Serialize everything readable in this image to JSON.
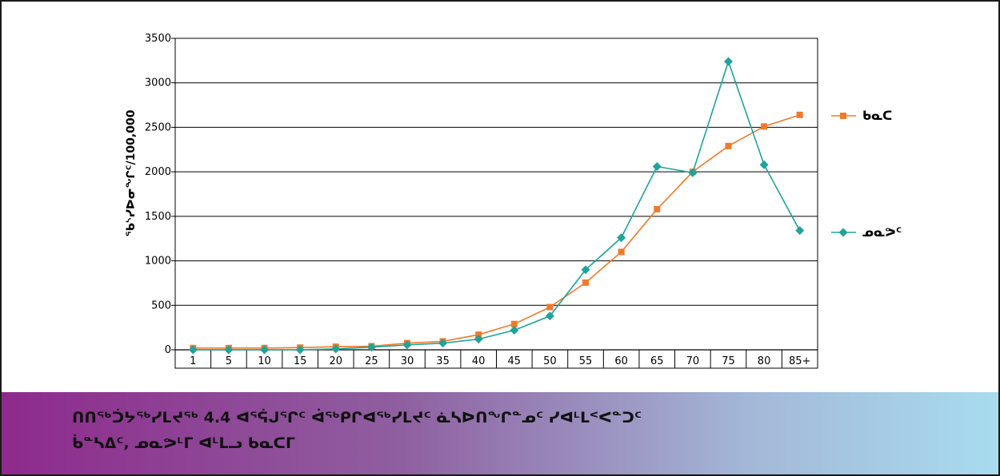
{
  "caption": {
    "line1": "ᑎᑎᖅᑑᔭᖅᓯᒪᔪᖅ 4.4 ᐊᕐᕌᒍᕐᒋᑦ ᐋᖅᑭᒋᐊᖅᓯᒪᔪᑦ ᓈᓴᐅᑎᖏᓐᓄᑦ ᓯᐊᒻᒪᑉᐸᓐᑐᑦ",
    "line2": "ᑳᓐᓴᐃᑦ, ᓄᓇᕗᒻᒥ ᐊᒻᒪᓗ ᑲᓇᑕᒥ"
  },
  "colors": {
    "kanata": "#f07a2a",
    "nunavut": "#1fa39a"
  },
  "chart_data": {
    "type": "line",
    "ylabel": "ᖃᔅᓯᐅᓂᖏᑦ/100,000",
    "xlabel": "",
    "ylim": [
      0,
      3500
    ],
    "yticks": [
      "0",
      "500",
      "1000",
      "1500",
      "2000",
      "2500",
      "3000",
      "3500"
    ],
    "grid": "horizontal",
    "legend": "right",
    "categories": [
      "1",
      "5",
      "10",
      "15",
      "20",
      "25",
      "30",
      "35",
      "40",
      "45",
      "50",
      "55",
      "60",
      "65",
      "70",
      "75",
      "80",
      "85+"
    ],
    "series": [
      {
        "name": "ᑲᓇᑕ",
        "marker": "square",
        "values": [
          20,
          20,
          20,
          25,
          35,
          40,
          75,
          95,
          170,
          290,
          480,
          755,
          1100,
          1580,
          2000,
          2290,
          2510,
          2640
        ]
      },
      {
        "name": "ᓄᓇᕗᑦ",
        "marker": "diamond",
        "values": [
          0,
          0,
          0,
          0,
          10,
          30,
          55,
          75,
          120,
          220,
          380,
          900,
          1260,
          2060,
          1990,
          3240,
          2080,
          1340
        ]
      }
    ]
  }
}
